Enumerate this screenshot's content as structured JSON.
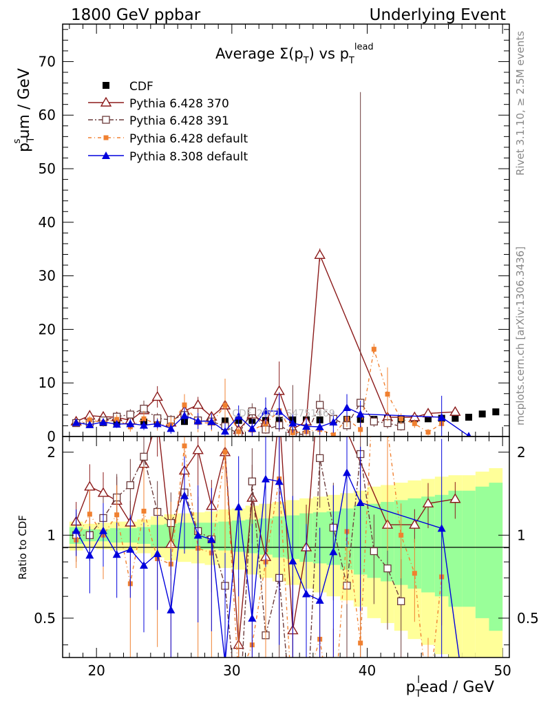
{
  "header": {
    "left": "1800 GeV ppbar",
    "right": "Underlying Event"
  },
  "side": {
    "rivet": "Rivet 3.1.10, ≥ 2.5M events",
    "mcplots": "mcplots.cern.ch [arXiv:1306.3436]"
  },
  "watermark": "CDF_2001_S4751469",
  "chart_data": {
    "type": "scatter",
    "title": {
      "main": "Average Σ(p",
      "sub": "T",
      "mid": ") vs p",
      "sub2": "T",
      "sup": "lead"
    },
    "ylabel": {
      "a": "p",
      "sub": "T",
      "sup": "s",
      "b": "um / GeV"
    },
    "xlabel": {
      "a": "p",
      "sub": "T",
      "sup": "l",
      "b": "ead / GeV"
    },
    "ratio_ylabel": "Ratio to CDF",
    "xlim": [
      17.5,
      50.5
    ],
    "ylim": [
      0,
      77
    ],
    "ratio_ylim": [
      0.36,
      2.28
    ],
    "x_ticks": [
      "20",
      "30",
      "40",
      "50"
    ],
    "y_ticks": [
      "0",
      "10",
      "20",
      "30",
      "40",
      "50",
      "60",
      "70"
    ],
    "ratio_ticks": [
      "0.5",
      "1",
      "2"
    ],
    "grid": false,
    "legend_position": "top-left",
    "series": [
      {
        "name": "CDF",
        "color": "#000000",
        "marker": "filled-square",
        "x": [
          18.5,
          19.5,
          20.5,
          21.5,
          22.5,
          23.5,
          24.5,
          25.5,
          26.5,
          27.5,
          28.5,
          29.5,
          30.5,
          31.5,
          32.5,
          33.5,
          34.5,
          35.5,
          36.5,
          37.5,
          38.5,
          39.5,
          40.5,
          41.5,
          42.5,
          43.5,
          44.5,
          45.5,
          46.5,
          47.5,
          48.5,
          49.5
        ],
        "y": [
          2.5,
          2.6,
          2.6,
          2.7,
          2.7,
          2.7,
          2.8,
          2.8,
          2.8,
          2.9,
          2.9,
          2.9,
          3.0,
          3.0,
          3.0,
          3.0,
          3.1,
          3.1,
          3.1,
          3.1,
          3.2,
          3.2,
          3.2,
          3.3,
          3.3,
          3.3,
          3.3,
          3.4,
          3.4,
          3.6,
          4.2,
          4.6
        ]
      },
      {
        "name": "Pythia 6.428 370",
        "color": "#8b1a1a",
        "marker": "open-triangle",
        "x": [
          18.5,
          19.5,
          20.5,
          21.5,
          22.5,
          23.5,
          24.5,
          25.5,
          26.5,
          27.5,
          28.5,
          29.5,
          30.5,
          31.5,
          32.5,
          33.5,
          34.5,
          35.5,
          36.5,
          41.5,
          43.5,
          44.5,
          46.5
        ],
        "y": [
          2.8,
          3.9,
          3.7,
          3.6,
          3.0,
          4.9,
          7.4,
          2.6,
          4.8,
          5.9,
          3.7,
          5.8,
          1.2,
          4.1,
          2.5,
          8.5,
          1.4,
          2.8,
          33.9,
          3.6,
          3.6,
          4.3,
          4.6
        ],
        "err": [
          0.5,
          0.8,
          0.7,
          0.8,
          0.6,
          1.3,
          2.0,
          0.6,
          1.2,
          1.5,
          0.9,
          2.0,
          0.6,
          1.3,
          1.0,
          5.5,
          0.8,
          1.2,
          1.2,
          0.6,
          0.5,
          0.8,
          0.7
        ]
      },
      {
        "name": "Pythia 6.428 391",
        "color": "#6b3a3a",
        "marker": "open-square",
        "x": [
          18.5,
          19.5,
          20.5,
          21.5,
          22.5,
          23.5,
          24.5,
          25.5,
          26.5,
          27.5,
          28.5,
          29.5,
          30.5,
          31.5,
          32.5,
          33.5,
          34.5,
          35.5,
          36.5,
          37.5,
          38.5,
          39.5,
          40.5,
          41.5,
          42.5
        ],
        "y": [
          2.5,
          2.6,
          3.0,
          3.7,
          4.1,
          5.2,
          3.4,
          3.1,
          4.0,
          3.0,
          2.8,
          1.9,
          0.5,
          4.7,
          1.3,
          2.1,
          0.6,
          0.3,
          5.9,
          3.3,
          2.1,
          6.3,
          2.8,
          2.5,
          1.9
        ],
        "err": [
          0.5,
          0.5,
          0.6,
          0.8,
          1.0,
          1.5,
          1.0,
          0.9,
          1.2,
          1.0,
          1.0,
          0.8,
          0.6,
          1.5,
          0.8,
          1.2,
          9.0,
          0.5,
          2.0,
          1.5,
          1.0,
          58.0,
          1.0,
          1.0,
          0.8
        ]
      },
      {
        "name": "Pythia 6.428 default",
        "color": "#f08030",
        "marker": "filled-small-square",
        "x": [
          18.5,
          19.5,
          20.5,
          21.5,
          22.5,
          23.5,
          24.5,
          25.5,
          26.5,
          27.5,
          28.5,
          29.5,
          30.5,
          31.5,
          32.5,
          33.5,
          34.5,
          35.5,
          36.5,
          37.5,
          38.5,
          39.5,
          40.5,
          41.5,
          42.5,
          43.5,
          44.5,
          45.5
        ],
        "y": [
          2.4,
          3.1,
          2.6,
          3.2,
          1.8,
          3.3,
          2.3,
          2.2,
          5.9,
          2.6,
          2.5,
          5.8,
          0.9,
          1.2,
          2.4,
          4.8,
          0.7,
          0.9,
          1.3,
          0.3,
          3.3,
          1.3,
          16.3,
          7.9,
          3.3,
          2.4,
          0.8,
          2.4
        ],
        "err": [
          0.5,
          0.7,
          0.8,
          0.9,
          0.9,
          1.5,
          1.2,
          1.5,
          2.0,
          1.8,
          1.5,
          5.0,
          1.2,
          1.5,
          1.5,
          3.5,
          0.9,
          1.0,
          1.2,
          0.8,
          1.5,
          1.2,
          1.0,
          5.0,
          1.0,
          0.8,
          0.6,
          0.8
        ]
      },
      {
        "name": "Pythia 8.308 default",
        "color": "#0000dd",
        "marker": "filled-triangle",
        "x": [
          18.5,
          19.5,
          20.5,
          21.5,
          22.5,
          23.5,
          24.5,
          25.5,
          26.5,
          27.5,
          28.5,
          29.5,
          30.5,
          31.5,
          32.5,
          33.5,
          34.5,
          35.5,
          36.5,
          37.5,
          38.5,
          39.5,
          45.5,
          47.5
        ],
        "y": [
          2.6,
          2.2,
          2.7,
          2.3,
          2.4,
          2.1,
          2.4,
          1.5,
          3.9,
          2.9,
          2.8,
          1.0,
          3.8,
          1.5,
          4.8,
          4.7,
          2.5,
          1.9,
          1.8,
          2.7,
          5.4,
          4.2,
          3.6,
          0.1
        ],
        "err": [
          0.5,
          0.6,
          0.7,
          0.7,
          0.8,
          0.9,
          0.9,
          1.0,
          1.5,
          1.5,
          1.5,
          1.5,
          2.0,
          1.8,
          2.5,
          3.5,
          1.8,
          1.5,
          1.5,
          2.0,
          2.5,
          2.5,
          4.0,
          0.5
        ]
      }
    ],
    "ratio_bands": {
      "x": [
        18,
        19,
        20,
        21,
        22,
        23,
        24,
        25,
        26,
        27,
        28,
        29,
        30,
        31,
        32,
        33,
        34,
        35,
        36,
        37,
        38,
        39,
        40,
        41,
        42,
        43,
        44,
        45,
        46,
        47,
        48,
        49,
        50
      ],
      "green_frac": [
        0.07,
        0.05,
        0.05,
        0.06,
        0.06,
        0.07,
        0.09,
        0.1,
        0.11,
        0.11,
        0.11,
        0.12,
        0.13,
        0.14,
        0.15,
        0.17,
        0.18,
        0.2,
        0.21,
        0.22,
        0.25,
        0.28,
        0.3,
        0.32,
        0.34,
        0.36,
        0.38,
        0.4,
        0.45,
        0.45,
        0.5,
        0.55
      ],
      "yellow_frac": [
        0.12,
        0.1,
        0.11,
        0.12,
        0.12,
        0.14,
        0.17,
        0.19,
        0.2,
        0.21,
        0.22,
        0.24,
        0.25,
        0.28,
        0.3,
        0.32,
        0.34,
        0.36,
        0.38,
        0.4,
        0.42,
        0.45,
        0.5,
        0.52,
        0.55,
        0.58,
        0.6,
        0.63,
        0.65,
        0.65,
        0.7,
        0.75
      ]
    }
  }
}
